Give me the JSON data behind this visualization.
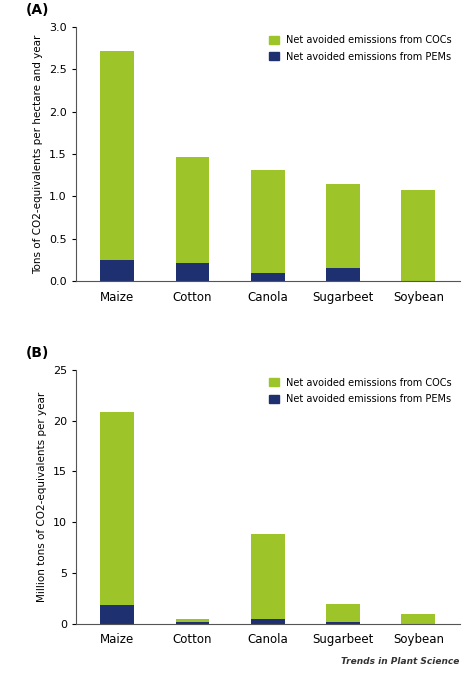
{
  "categories": [
    "Maize",
    "Cotton",
    "Canola",
    "Sugarbeet",
    "Soybean"
  ],
  "A_COCs": [
    2.47,
    1.25,
    1.22,
    1.0,
    1.07
  ],
  "A_PEMs": [
    0.25,
    0.21,
    0.09,
    0.15,
    0.0
  ],
  "A_ylabel": "Tons of CO2-equivalents per hectare and year",
  "A_ylim": [
    0,
    3
  ],
  "A_yticks": [
    0,
    0.5,
    1.0,
    1.5,
    2.0,
    2.5,
    3.0
  ],
  "A_label": "(A)",
  "B_COCs": [
    19.1,
    0.3,
    8.4,
    1.75,
    1.0
  ],
  "B_PEMs": [
    1.8,
    0.2,
    0.45,
    0.2,
    0.0
  ],
  "B_ylabel": "Million tons of CO2-equivalents per year",
  "B_ylim": [
    0,
    25
  ],
  "B_yticks": [
    0,
    5,
    10,
    15,
    20,
    25
  ],
  "B_label": "(B)",
  "color_COCs": "#9dc52a",
  "color_PEMs": "#1f3070",
  "legend_COCs": "Net avoided emissions from COCs",
  "legend_PEMs": "Net avoided emissions from PEMs",
  "bar_width": 0.45,
  "background_color": "#ffffff",
  "watermark": "Trends in Plant Science"
}
